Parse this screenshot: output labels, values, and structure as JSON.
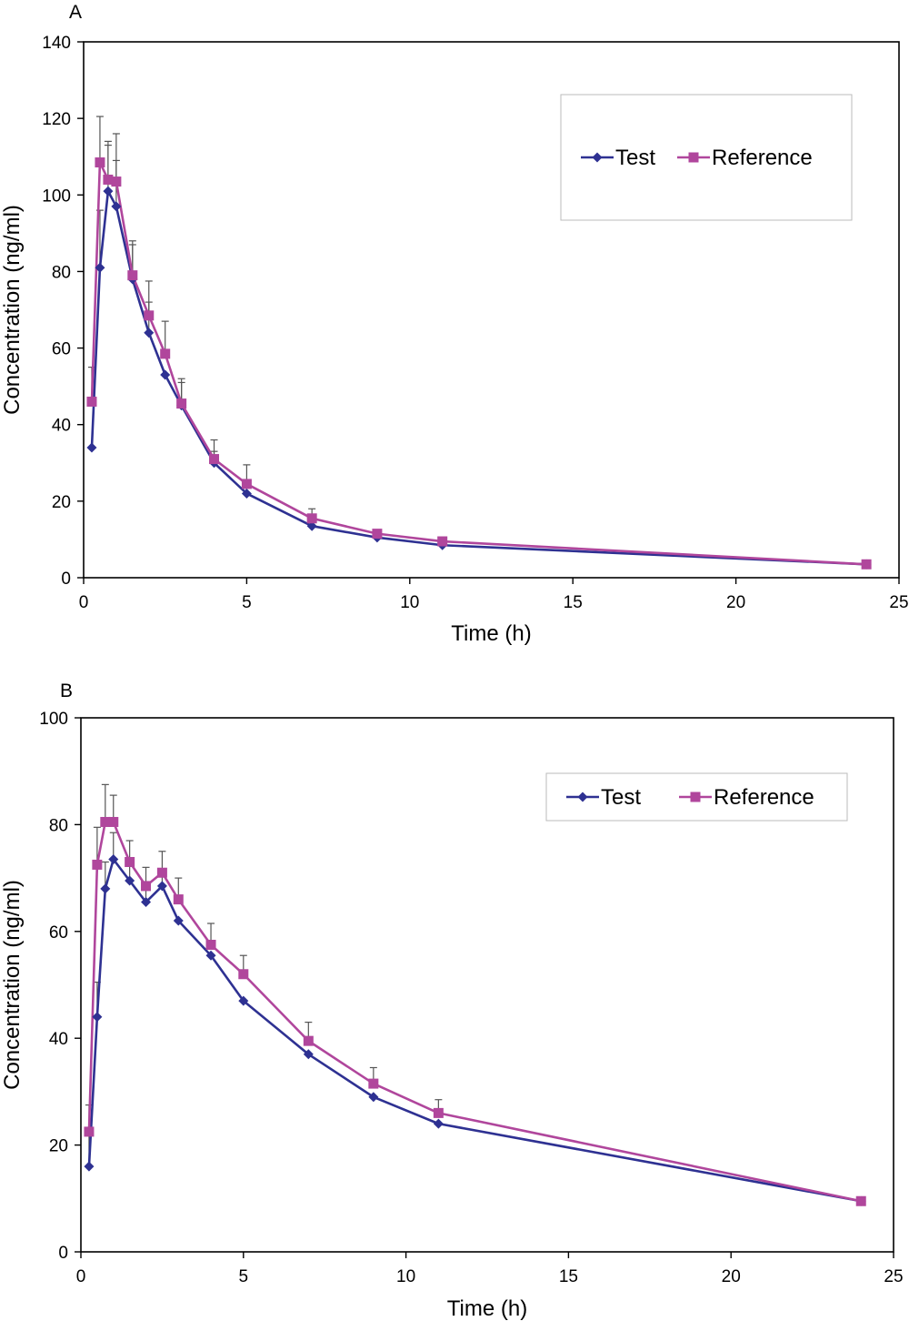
{
  "chart_data": [
    {
      "type": "line",
      "panel_label": "A",
      "xlabel": "Time (h)",
      "ylabel": "Concentration (ng/ml)",
      "xlim": [
        0,
        25
      ],
      "ylim": [
        0,
        140
      ],
      "xticks": [
        0,
        5,
        10,
        15,
        20,
        25
      ],
      "yticks": [
        0,
        20,
        40,
        60,
        80,
        100,
        120,
        140
      ],
      "grid": false,
      "legend": {
        "position": "top-right",
        "entries": [
          "Test",
          "Reference"
        ]
      },
      "x": [
        0.25,
        0.5,
        0.75,
        1,
        1.5,
        2,
        2.5,
        3,
        4,
        5,
        7,
        9,
        11,
        24
      ],
      "series": [
        {
          "name": "Test",
          "color": "#2e3192",
          "marker": "diamond",
          "values": [
            34,
            81,
            101,
            97,
            78,
            64,
            53,
            45,
            30,
            22,
            13.5,
            10.5,
            8.5,
            3.5
          ],
          "error": [
            null,
            15,
            12,
            12,
            9,
            8,
            null,
            6,
            3,
            null,
            null,
            null,
            null,
            null
          ]
        },
        {
          "name": "Reference",
          "color": "#b0469c",
          "marker": "square",
          "values": [
            46,
            108.5,
            104,
            103.5,
            79,
            68.5,
            58.5,
            45.5,
            31,
            24.5,
            15.5,
            11.5,
            9.5,
            3.5
          ],
          "error": [
            9,
            12,
            10,
            12.5,
            9,
            9,
            8.5,
            6.5,
            5,
            5,
            2.5,
            1,
            1,
            0.5
          ]
        }
      ]
    },
    {
      "type": "line",
      "panel_label": "B",
      "xlabel": "Time (h)",
      "ylabel": "Concentration (ng/ml)",
      "xlim": [
        0,
        25
      ],
      "ylim": [
        0,
        100
      ],
      "xticks": [
        0,
        5,
        10,
        15,
        20,
        25
      ],
      "yticks": [
        0,
        20,
        40,
        60,
        80,
        100
      ],
      "grid": false,
      "legend": {
        "position": "top-right",
        "entries": [
          "Test",
          "Reference"
        ]
      },
      "x": [
        0.25,
        0.5,
        0.75,
        1,
        1.5,
        2,
        2.5,
        3,
        4,
        5,
        7,
        9,
        11,
        24
      ],
      "series": [
        {
          "name": "Test",
          "color": "#2e3192",
          "marker": "diamond",
          "values": [
            16,
            44,
            68,
            73.5,
            69.5,
            65.5,
            68.5,
            62,
            55.5,
            47,
            37,
            29,
            24,
            9.5
          ],
          "error": [
            6,
            6.5,
            5,
            5,
            3.5,
            3,
            3,
            null,
            null,
            null,
            null,
            null,
            null,
            null
          ]
        },
        {
          "name": "Reference",
          "color": "#b0469c",
          "marker": "square",
          "values": [
            22.5,
            72.5,
            80.5,
            80.5,
            73,
            68.5,
            71,
            66,
            57.5,
            52,
            39.5,
            31.5,
            26,
            9.5
          ],
          "error": [
            5,
            7,
            7,
            5,
            4,
            3.5,
            4,
            4,
            4,
            3.5,
            3.5,
            3,
            2.5,
            0.5
          ]
        }
      ]
    }
  ]
}
